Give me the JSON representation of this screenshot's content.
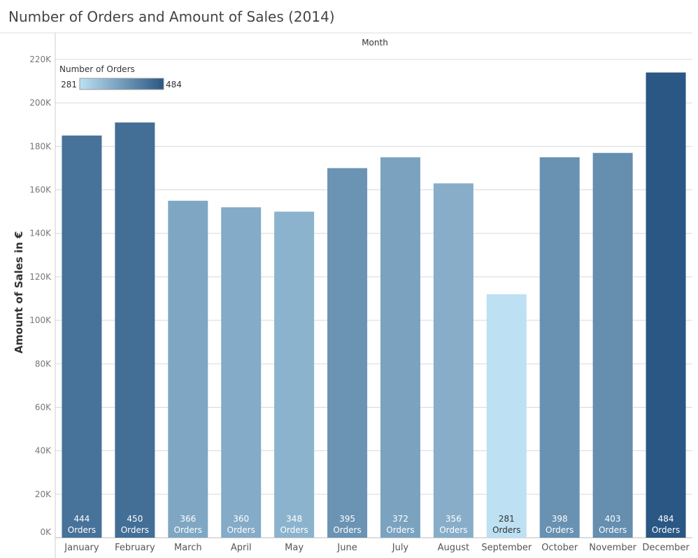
{
  "title": "Number of Orders and Amount of Sales (2014)",
  "chart_data": {
    "type": "bar",
    "x_header": "Month",
    "ylabel": "Amount of Sales in €",
    "ylim": [
      0,
      220000
    ],
    "y_ticks": [
      0,
      20000,
      40000,
      60000,
      80000,
      100000,
      120000,
      140000,
      160000,
      180000,
      200000,
      220000
    ],
    "y_tick_labels": [
      "0K",
      "20K",
      "40K",
      "60K",
      "80K",
      "100K",
      "120K",
      "140K",
      "160K",
      "180K",
      "200K",
      "220K"
    ],
    "grid": true,
    "categories": [
      "January",
      "February",
      "March",
      "April",
      "May",
      "June",
      "July",
      "August",
      "September",
      "October",
      "November",
      "December"
    ],
    "values": [
      185000,
      191000,
      155000,
      152000,
      150000,
      170000,
      175000,
      163000,
      112000,
      175000,
      177000,
      214000
    ],
    "orders": [
      444,
      450,
      366,
      360,
      348,
      395,
      372,
      356,
      281,
      398,
      403,
      484
    ],
    "bar_label_suffix": "Orders",
    "color_legend": {
      "title": "Number of Orders",
      "min": 281,
      "max": 484,
      "min_label": "281",
      "max_label": "484",
      "color_min": "#bde0f2",
      "color_max": "#2a5783",
      "placement": "top-left"
    }
  }
}
